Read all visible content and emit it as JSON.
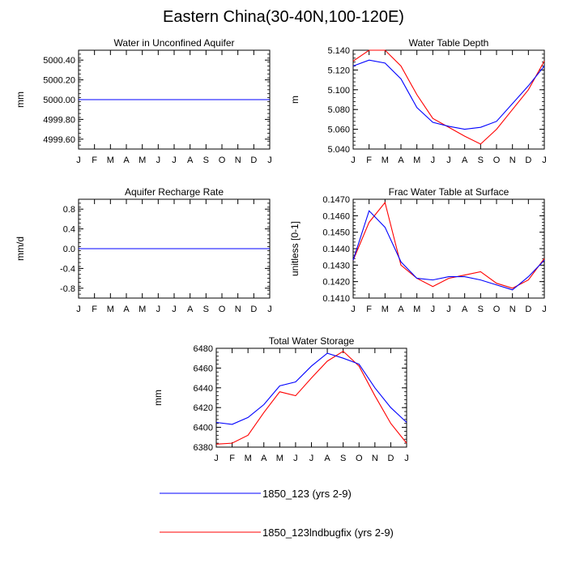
{
  "title": "Eastern China(30-40N,100-120E)",
  "colors": {
    "series1": "#0000ff",
    "series2": "#ff0000",
    "axis": "#000000"
  },
  "legend": [
    {
      "label": "1850_123 (yrs 2-9)",
      "color": "#0000ff"
    },
    {
      "label": "1850_123lndbugfix (yrs 2-9)",
      "color": "#ff0000"
    }
  ],
  "chart_data": [
    {
      "type": "line",
      "title": "Water in Unconfined Aquifer",
      "ylabel": "mm",
      "categories": [
        "J",
        "F",
        "M",
        "A",
        "M",
        "J",
        "J",
        "A",
        "S",
        "O",
        "N",
        "D",
        "J"
      ],
      "ylim": [
        4999.5,
        5000.5
      ],
      "yticks": [
        4999.6,
        4999.8,
        5000.0,
        5000.2,
        5000.4
      ],
      "ytick_labels": [
        "4999.60",
        "4999.80",
        "5000.00",
        "5000.20",
        "5000.40"
      ],
      "series": [
        {
          "name": "1850_123 (yrs 2-9)",
          "values": [
            5000,
            5000,
            5000,
            5000,
            5000,
            5000,
            5000,
            5000,
            5000,
            5000,
            5000,
            5000,
            5000
          ]
        },
        {
          "name": "1850_123lndbugfix (yrs 2-9)",
          "values": [
            5000,
            5000,
            5000,
            5000,
            5000,
            5000,
            5000,
            5000,
            5000,
            5000,
            5000,
            5000,
            5000
          ]
        }
      ]
    },
    {
      "type": "line",
      "title": "Water Table Depth",
      "ylabel": "m",
      "categories": [
        "J",
        "F",
        "M",
        "A",
        "M",
        "J",
        "J",
        "A",
        "S",
        "O",
        "N",
        "D",
        "J"
      ],
      "ylim": [
        5.04,
        5.14
      ],
      "yticks": [
        5.04,
        5.06,
        5.08,
        5.1,
        5.12,
        5.14
      ],
      "ytick_labels": [
        "5.040",
        "5.060",
        "5.080",
        "5.100",
        "5.120",
        "5.140"
      ],
      "series": [
        {
          "name": "1850_123 (yrs 2-9)",
          "values": [
            5.124,
            5.13,
            5.127,
            5.111,
            5.082,
            5.067,
            5.063,
            5.06,
            5.062,
            5.068,
            5.086,
            5.104,
            5.124
          ]
        },
        {
          "name": "1850_123lndbugfix (yrs 2-9)",
          "values": [
            5.129,
            5.14,
            5.14,
            5.124,
            5.095,
            5.071,
            5.062,
            5.053,
            5.045,
            5.06,
            5.08,
            5.1,
            5.129
          ]
        }
      ]
    },
    {
      "type": "line",
      "title": "Aquifer Recharge Rate",
      "ylabel": "mm/d",
      "categories": [
        "J",
        "F",
        "M",
        "A",
        "M",
        "J",
        "J",
        "A",
        "S",
        "O",
        "N",
        "D",
        "J"
      ],
      "ylim": [
        -1.0,
        1.0
      ],
      "yticks": [
        -0.8,
        -0.4,
        0.0,
        0.4,
        0.8
      ],
      "ytick_labels": [
        "-0.8",
        "-0.4",
        "0.0",
        "0.4",
        "0.8"
      ],
      "series": [
        {
          "name": "1850_123 (yrs 2-9)",
          "values": [
            0,
            0,
            0,
            0,
            0,
            0,
            0,
            0,
            0,
            0,
            0,
            0,
            0
          ]
        },
        {
          "name": "1850_123lndbugfix (yrs 2-9)",
          "values": [
            0,
            0,
            0,
            0,
            0,
            0,
            0,
            0,
            0,
            0,
            0,
            0,
            0
          ]
        }
      ]
    },
    {
      "type": "line",
      "title": "Frac Water Table at Surface",
      "ylabel": "unitless [0-1]",
      "categories": [
        "J",
        "F",
        "M",
        "A",
        "M",
        "J",
        "J",
        "A",
        "S",
        "O",
        "N",
        "D",
        "J"
      ],
      "ylim": [
        0.141,
        0.147
      ],
      "yticks": [
        0.141,
        0.142,
        0.143,
        0.144,
        0.145,
        0.146,
        0.147
      ],
      "ytick_labels": [
        "0.1410",
        "0.1420",
        "0.1430",
        "0.1440",
        "0.1450",
        "0.1460",
        "0.1470"
      ],
      "series": [
        {
          "name": "1850_123 (yrs 2-9)",
          "values": [
            0.1433,
            0.1463,
            0.1453,
            0.1432,
            0.1422,
            0.1421,
            0.1423,
            0.1423,
            0.1421,
            0.1418,
            0.1415,
            0.1423,
            0.1433
          ]
        },
        {
          "name": "1850_123lndbugfix (yrs 2-9)",
          "values": [
            0.1433,
            0.1456,
            0.1468,
            0.143,
            0.1422,
            0.1417,
            0.1422,
            0.1424,
            0.1426,
            0.1419,
            0.1416,
            0.1421,
            0.1434
          ]
        }
      ]
    },
    {
      "type": "line",
      "title": "Total Water Storage",
      "ylabel": "mm",
      "categories": [
        "J",
        "F",
        "M",
        "A",
        "M",
        "J",
        "J",
        "A",
        "S",
        "O",
        "N",
        "D",
        "J"
      ],
      "ylim": [
        6380,
        6480
      ],
      "yticks": [
        6380,
        6400,
        6420,
        6440,
        6460,
        6480
      ],
      "ytick_labels": [
        "6380",
        "6400",
        "6420",
        "6440",
        "6460",
        "6480"
      ],
      "series": [
        {
          "name": "1850_123 (yrs 2-9)",
          "values": [
            6405,
            6403,
            6410,
            6423,
            6442,
            6446,
            6462,
            6475,
            6470,
            6464,
            6440,
            6420,
            6405
          ]
        },
        {
          "name": "1850_123lndbugfix (yrs 2-9)",
          "values": [
            6383,
            6384,
            6392,
            6415,
            6436,
            6432,
            6450,
            6467,
            6477,
            6462,
            6432,
            6404,
            6384
          ]
        }
      ]
    }
  ]
}
